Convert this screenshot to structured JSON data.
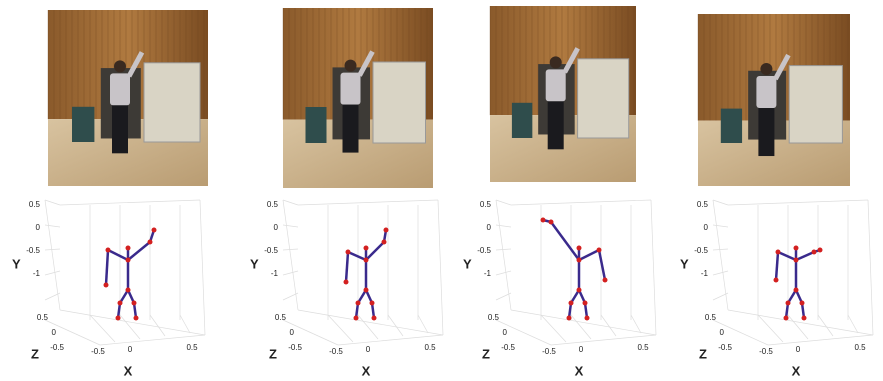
{
  "panels": [
    {
      "y_label": "Y",
      "x_label": "X",
      "z_label": "Z",
      "y_ticks": [
        "0.5",
        "0",
        "-0.5",
        "-1"
      ],
      "z_ticks": [
        "0.5",
        "0",
        "-0.5"
      ],
      "x_ticks": [
        "-0.5",
        "0",
        "0.5"
      ]
    },
    {
      "y_label": "Y",
      "x_label": "X",
      "z_label": "Z",
      "y_ticks": [
        "0.5",
        "0",
        "-0.5",
        "-1"
      ],
      "z_ticks": [
        "0.5",
        "0",
        "-0.5"
      ],
      "x_ticks": [
        "-0.5",
        "0",
        "0.5"
      ]
    },
    {
      "y_label": "Y",
      "x_label": "X",
      "z_label": "Z",
      "y_ticks": [
        "0.5",
        "0",
        "-0.5",
        "-1"
      ],
      "z_ticks": [
        "0.5",
        "0",
        "-0.5"
      ],
      "x_ticks": [
        "-0.5",
        "0",
        "0.5"
      ]
    },
    {
      "y_label": "Y",
      "x_label": "X",
      "z_label": "Z",
      "y_ticks": [
        "0.5",
        "0",
        "-0.5",
        "-1"
      ],
      "z_ticks": [
        "0.5",
        "0",
        "-0.5"
      ],
      "x_ticks": [
        "-0.5",
        "0",
        "0.5"
      ]
    }
  ]
}
